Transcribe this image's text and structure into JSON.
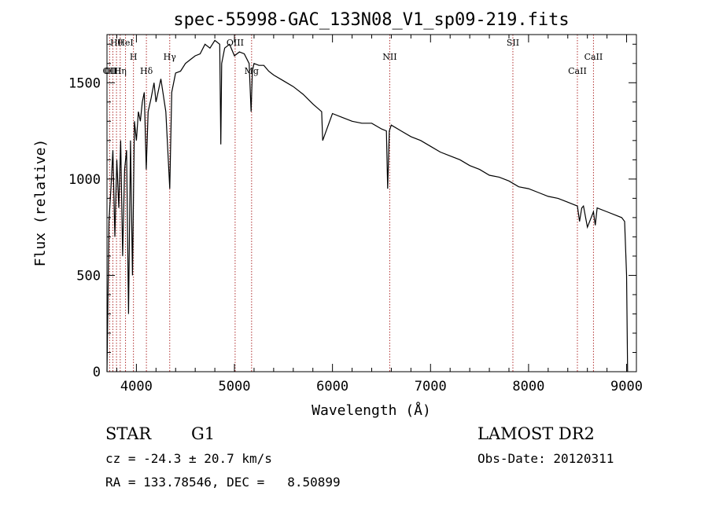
{
  "chart_data": {
    "type": "line",
    "title": "spec-55998-GAC_133N08_V1_sp09-219.fits",
    "xlabel": "Wavelength (Å)",
    "ylabel": "Flux (relative)",
    "xlim": [
      3700,
      9100
    ],
    "ylim": [
      0,
      1750
    ],
    "xticks": [
      4000,
      5000,
      6000,
      7000,
      8000,
      9000
    ],
    "yticks": [
      0,
      500,
      1000,
      1500
    ],
    "grid": false,
    "series": [
      {
        "x": [
          3700,
          3720,
          3740,
          3760,
          3780,
          3800,
          3820,
          3840,
          3860,
          3880,
          3900,
          3920,
          3940,
          3960,
          3980,
          4000,
          4020,
          4040,
          4060,
          4080,
          4100,
          4120,
          4150,
          4180,
          4200,
          4250,
          4300,
          4340,
          4360,
          4400,
          4450,
          4500,
          4550,
          4600,
          4650,
          4700,
          4750,
          4800,
          4850,
          4861,
          4870,
          4900,
          4950,
          5000,
          5050,
          5100,
          5150,
          5170,
          5183,
          5200,
          5250,
          5300,
          5350,
          5400,
          5500,
          5600,
          5700,
          5800,
          5890,
          5900,
          6000,
          6100,
          6200,
          6300,
          6400,
          6500,
          6550,
          6563,
          6580,
          6600,
          6700,
          6800,
          6900,
          7000,
          7100,
          7200,
          7300,
          7400,
          7500,
          7600,
          7700,
          7800,
          7900,
          8000,
          8100,
          8200,
          8300,
          8400,
          8498,
          8520,
          8542,
          8560,
          8600,
          8662,
          8680,
          8700,
          8800,
          8900,
          8950,
          8980,
          9000,
          9010
        ],
        "y": [
          0,
          780,
          950,
          1150,
          700,
          1100,
          850,
          1200,
          600,
          1050,
          1150,
          300,
          1200,
          500,
          1300,
          1200,
          1350,
          1300,
          1400,
          1450,
          1050,
          1350,
          1420,
          1500,
          1400,
          1520,
          1350,
          950,
          1450,
          1550,
          1560,
          1600,
          1620,
          1640,
          1650,
          1700,
          1680,
          1720,
          1700,
          1180,
          1600,
          1680,
          1700,
          1640,
          1660,
          1650,
          1600,
          1350,
          1560,
          1600,
          1590,
          1590,
          1560,
          1540,
          1510,
          1480,
          1440,
          1390,
          1350,
          1200,
          1340,
          1320,
          1300,
          1290,
          1290,
          1260,
          1250,
          950,
          1250,
          1280,
          1250,
          1220,
          1200,
          1170,
          1140,
          1120,
          1100,
          1070,
          1050,
          1020,
          1010,
          990,
          960,
          950,
          930,
          910,
          900,
          880,
          860,
          780,
          850,
          860,
          750,
          830,
          760,
          850,
          830,
          810,
          800,
          780,
          500,
          0
        ]
      }
    ],
    "lines": [
      {
        "label": "Hθ",
        "x": 3797
      },
      {
        "label": "H",
        "x": 3970
      },
      {
        "label": "OII",
        "x": 3727
      },
      {
        "label": "HeI",
        "x": 3889
      },
      {
        "label": "OIII",
        "x": 3760
      },
      {
        "label": "Hη",
        "x": 3835
      },
      {
        "label": "Hδ",
        "x": 4102
      },
      {
        "label": "Hγ",
        "x": 4340
      },
      {
        "label": "OIII",
        "x": 5007
      },
      {
        "label": "Mg",
        "x": 5175
      },
      {
        "label": "NII",
        "x": 6584
      },
      {
        "label": "SII",
        "x": 7840
      },
      {
        "label": "CaII",
        "x": 8662
      },
      {
        "label": "CaII",
        "x": 8498
      }
    ]
  },
  "info": {
    "class": "STAR",
    "subclass": "G1",
    "survey": "LAMOST DR2",
    "cz": "cz = -24.3 ± 20.7 km/s",
    "obs_date": "Obs-Date: 20120311",
    "coords": "RA = 133.78546, DEC =   8.50899"
  }
}
